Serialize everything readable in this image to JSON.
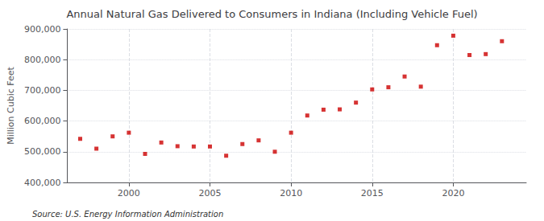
{
  "chart_data": {
    "type": "scatter",
    "title": "Annual Natural Gas Delivered to Consumers in Indiana (Including Vehicle Fuel)",
    "ylabel": "Million Cubic Feet",
    "source": "Source: U.S. Energy Information Administration",
    "x": [
      1997,
      1998,
      1999,
      2000,
      2001,
      2002,
      2003,
      2004,
      2005,
      2006,
      2007,
      2008,
      2009,
      2010,
      2011,
      2012,
      2013,
      2014,
      2015,
      2016,
      2017,
      2018,
      2019,
      2020,
      2021,
      2022,
      2023
    ],
    "values": [
      542000,
      510000,
      550000,
      562000,
      493000,
      530000,
      518000,
      517000,
      517000,
      487000,
      525000,
      537000,
      500000,
      562000,
      618000,
      637000,
      638000,
      660000,
      703000,
      710000,
      745000,
      712000,
      847000,
      878000,
      815000,
      818000,
      860000
    ],
    "color": "#cc0000",
    "marker": "square",
    "xlim": [
      1996.2,
      2024.5
    ],
    "xticks": [
      2000,
      2005,
      2010,
      2015,
      2020
    ],
    "ylim": [
      400000,
      900000
    ],
    "yticks": [
      {
        "value": 400000,
        "label": "400,000"
      },
      {
        "value": 500000,
        "label": "500,000"
      },
      {
        "value": 600000,
        "label": "600,000"
      },
      {
        "value": 700000,
        "label": "700,000"
      },
      {
        "value": 800000,
        "label": "800,000"
      },
      {
        "value": 900000,
        "label": "900,000"
      }
    ],
    "grid": true
  }
}
